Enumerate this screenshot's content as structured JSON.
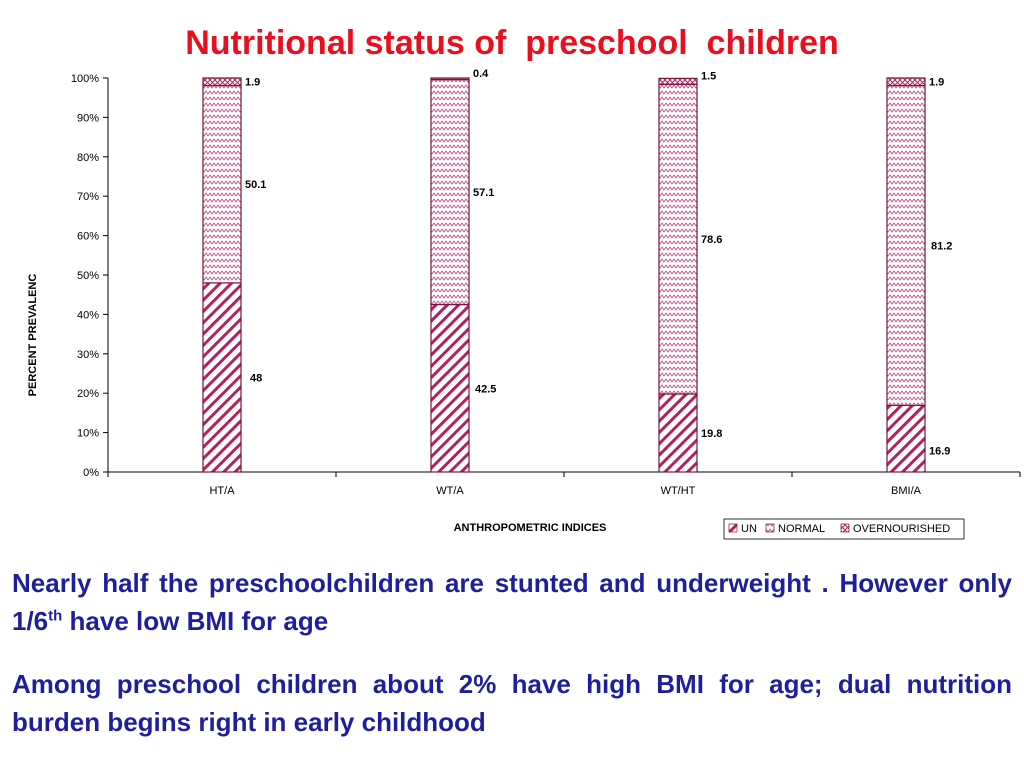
{
  "slide": {
    "title": "Nutritional status of  preschool  children",
    "para1_part1": "Nearly  half the  preschoolchildren are stunted  and underweight . However only  1/6",
    "para1_sup": "th",
    "para1_part2": " have low BMI  for age",
    "para2": "Among preschool children about 2% have high BMI  for age; dual nutrition burden begins right in early childhood"
  },
  "colors": {
    "title": "#e8101f",
    "body_text": "#1f1f9e",
    "bar_outline": "#7a1240",
    "hatch": "#b0245e"
  },
  "chart_data": {
    "type": "bar",
    "stacked": true,
    "percent_stacked": true,
    "categories": [
      "HT/A",
      "WT/A",
      "WT/HT",
      "BMI/A"
    ],
    "series": [
      {
        "name": "UN",
        "values": [
          48,
          42.5,
          19.8,
          16.9
        ],
        "labels": [
          "48",
          "42.5",
          "19.8",
          "16.9"
        ],
        "pattern": "diag-dense"
      },
      {
        "name": "NORMAL",
        "values": [
          50.1,
          57.1,
          78.6,
          81.2
        ],
        "labels": [
          "50.1",
          "57.1",
          "78.6",
          "81.2"
        ],
        "pattern": "zigzag"
      },
      {
        "name": "OVERNOURISHED",
        "values": [
          1.9,
          0.4,
          1.5,
          1.9
        ],
        "labels": [
          "1.9",
          "0.4",
          "1.5",
          "1.9"
        ],
        "pattern": "diag-cross"
      }
    ],
    "xlabel": "ANTHROPOMETRIC INDICES",
    "ylabel": "PERCENT PREVALENC",
    "yticks": [
      "0%",
      "10%",
      "20%",
      "30%",
      "40%",
      "50%",
      "60%",
      "70%",
      "80%",
      "90%",
      "100%"
    ],
    "ylim": [
      0,
      100
    ],
    "grid": false,
    "legend_position": "bottom-right"
  }
}
